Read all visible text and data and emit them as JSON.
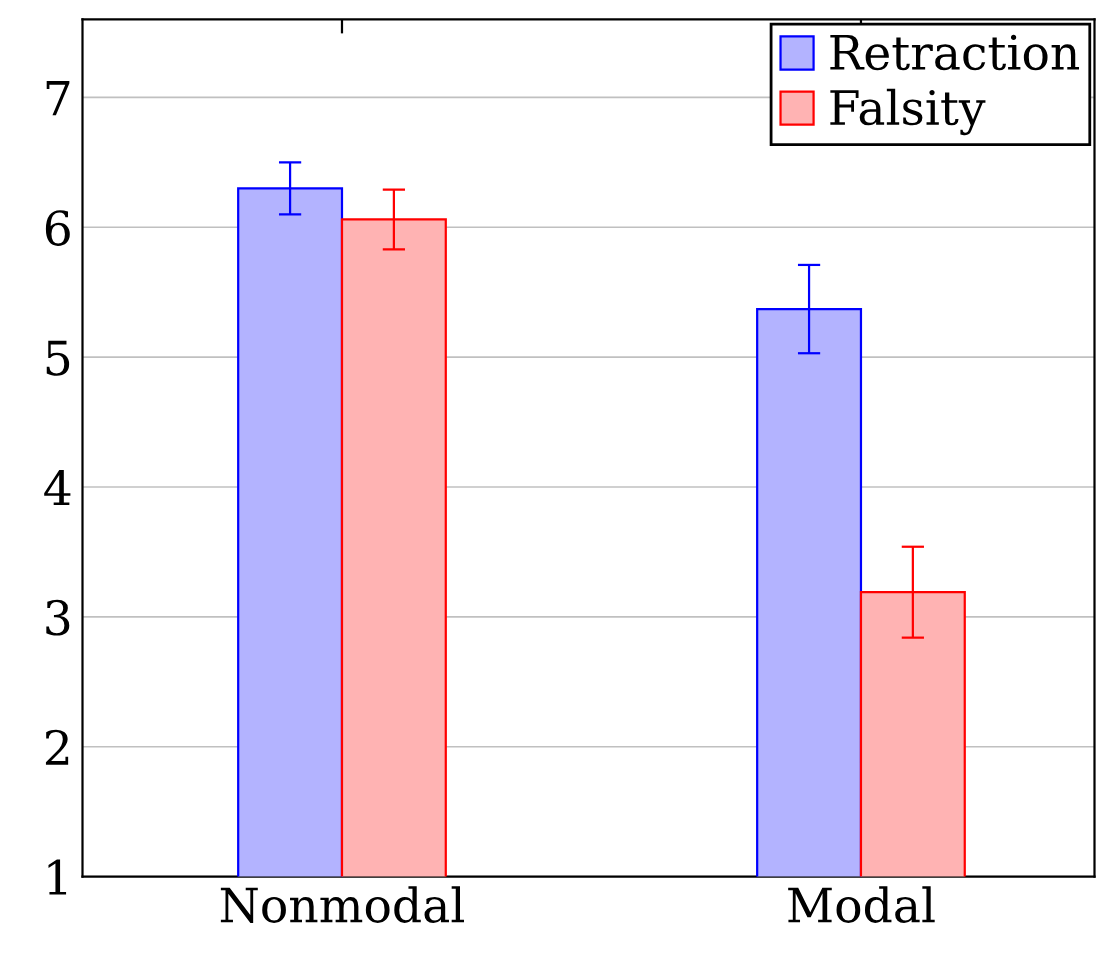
{
  "chart_data": {
    "type": "bar",
    "categories": [
      "Nonmodal",
      "Modal"
    ],
    "series": [
      {
        "name": "Retraction",
        "color": "#b3b3ff",
        "values": [
          6.3,
          5.37
        ],
        "errors": [
          0.2,
          0.34
        ]
      },
      {
        "name": "Falsity",
        "color": "#ffb3b3",
        "values": [
          6.06,
          3.19
        ],
        "errors": [
          0.23,
          0.35
        ]
      }
    ],
    "ylim": [
      1,
      7.6
    ],
    "yticks": [
      1,
      2,
      3,
      4,
      5,
      6,
      7
    ],
    "grid": "y",
    "legend": "top right"
  }
}
